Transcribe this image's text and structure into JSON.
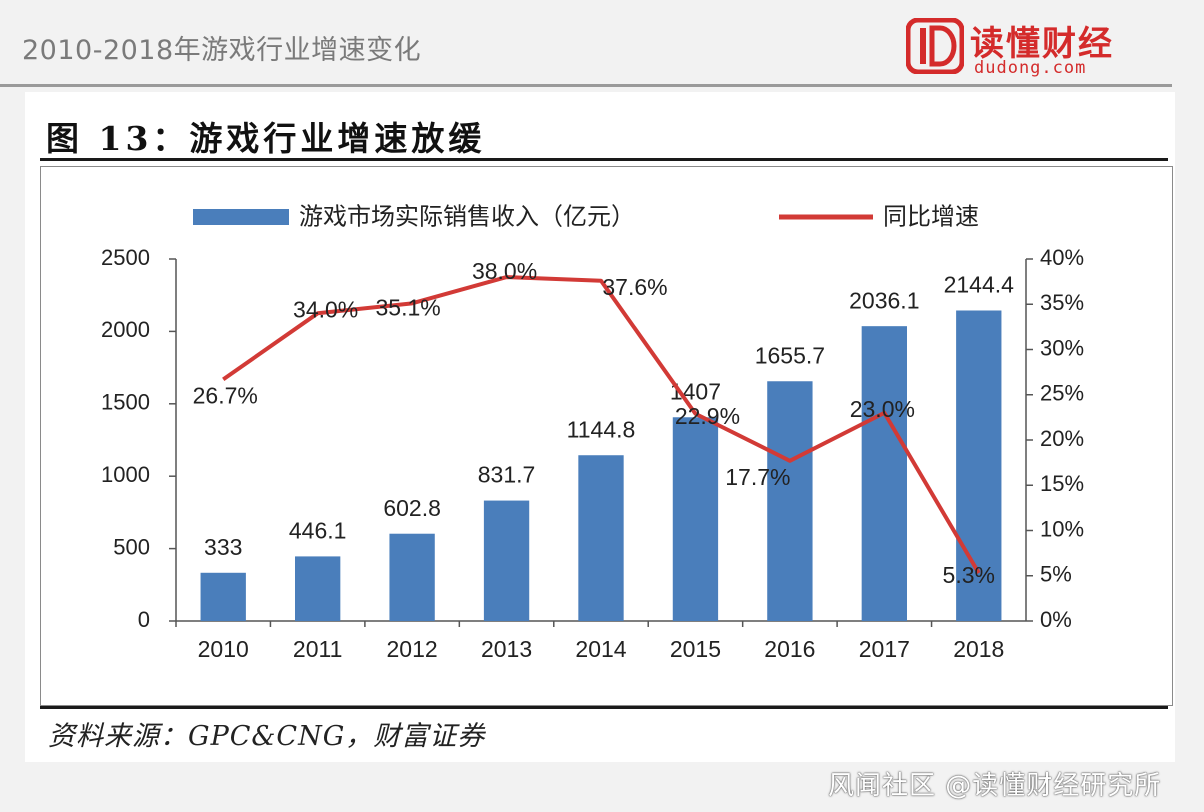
{
  "page": {
    "header_title": "2010-2018年游戏行业增速变化",
    "logo": {
      "cn": "读懂财经",
      "en": "dudong.com",
      "color": "#d42b2b"
    },
    "figure_title": "图 13：游戏行业增速放缓",
    "source": "资料来源：GPC&CNG，财富证券",
    "watermark": "风闻社区 @读懂财经研究所"
  },
  "chart_data": {
    "type": "bar",
    "categories": [
      "2010",
      "2011",
      "2012",
      "2013",
      "2014",
      "2015",
      "2016",
      "2017",
      "2018"
    ],
    "series": [
      {
        "name": "游戏市场实际销售收入（亿元）",
        "type": "bar",
        "axis": "left",
        "values": [
          333,
          446.1,
          602.8,
          831.7,
          1144.8,
          1407,
          1655.7,
          2036.1,
          2144.4
        ],
        "labels": [
          "333",
          "446.1",
          "602.8",
          "831.7",
          "1144.8",
          "1407",
          "1655.7",
          "2036.1",
          "2144.4"
        ],
        "color": "#4a7ebb"
      },
      {
        "name": "同比增速",
        "type": "line",
        "axis": "right",
        "values": [
          26.7,
          34.0,
          35.1,
          38.0,
          37.6,
          22.9,
          17.7,
          23.0,
          5.3
        ],
        "labels": [
          "26.7%",
          "34.0%",
          "35.1%",
          "38.0%",
          "37.6%",
          "22.9%",
          "17.7%",
          "23.0%",
          "5.3%"
        ],
        "color": "#d23a36"
      }
    ],
    "y_left": {
      "min": 0,
      "max": 2500,
      "ticks": [
        "0",
        "500",
        "1000",
        "1500",
        "2000",
        "2500"
      ]
    },
    "y_right": {
      "min": 0,
      "max": 40,
      "ticks": [
        "0%",
        "5%",
        "10%",
        "15%",
        "20%",
        "25%",
        "30%",
        "35%",
        "40%"
      ]
    },
    "legend_position": "top",
    "grid": false
  }
}
